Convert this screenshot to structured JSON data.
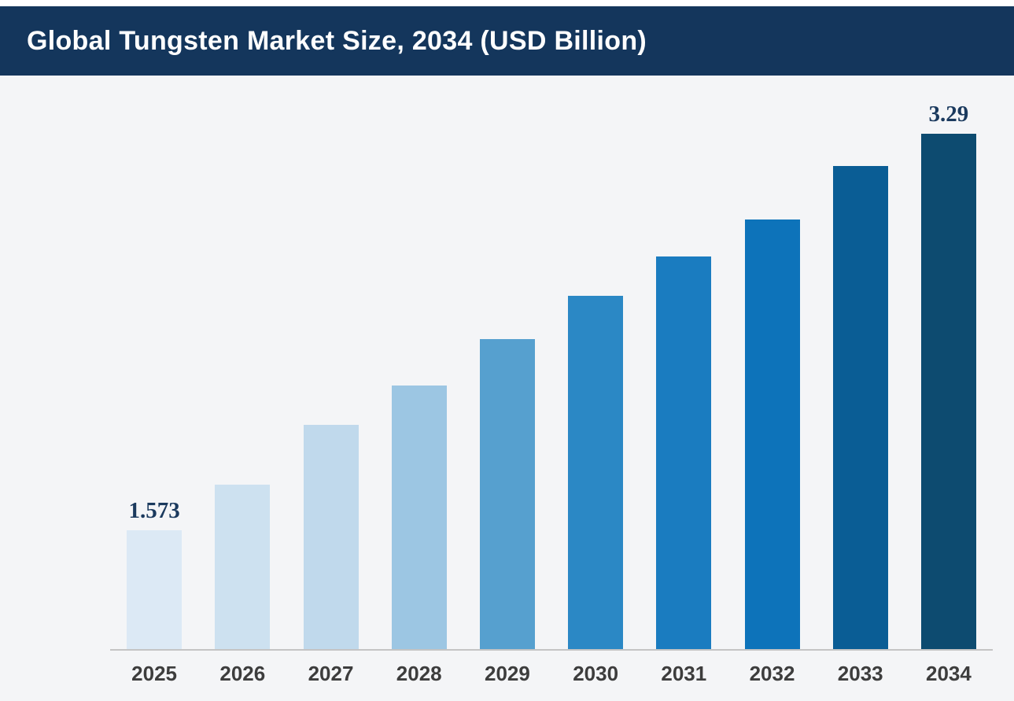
{
  "header": {
    "title": "Global Tungsten Market Size, 2034 (USD Billion)",
    "background_color": "#14365c",
    "text_color": "#ffffff"
  },
  "chart_data": {
    "type": "bar",
    "title": "Global Tungsten Market Size, 2034 (USD Billion)",
    "unit": "USD Billion",
    "categories": [
      "2025",
      "2026",
      "2027",
      "2028",
      "2029",
      "2030",
      "2031",
      "2032",
      "2033",
      "2034"
    ],
    "values": [
      1.573,
      1.77,
      2.03,
      2.2,
      2.4,
      2.59,
      2.76,
      2.92,
      3.15,
      3.29
    ],
    "data_labels": [
      "1.573",
      "",
      "",
      "",
      "",
      "",
      "",
      "",
      "",
      "3.29"
    ],
    "labeled_points": {
      "2025": "1.573",
      "2034": "3.29"
    },
    "xlabel": "",
    "ylabel": "",
    "ylim": [
      1.06,
      3.29
    ],
    "grid": false,
    "legend": false,
    "y_axis_visible": false,
    "bar_colors": [
      "#dce9f5",
      "#cde1f0",
      "#c0d9ec",
      "#9cc6e3",
      "#56a0cf",
      "#2b88c5",
      "#1a7cc0",
      "#0d73ba",
      "#0a5d95",
      "#0d4b70"
    ],
    "data_label_color": "#1b3a5e",
    "tick_label_color": "#3d3d3d",
    "axis_line_color": "#c4c4c4"
  }
}
